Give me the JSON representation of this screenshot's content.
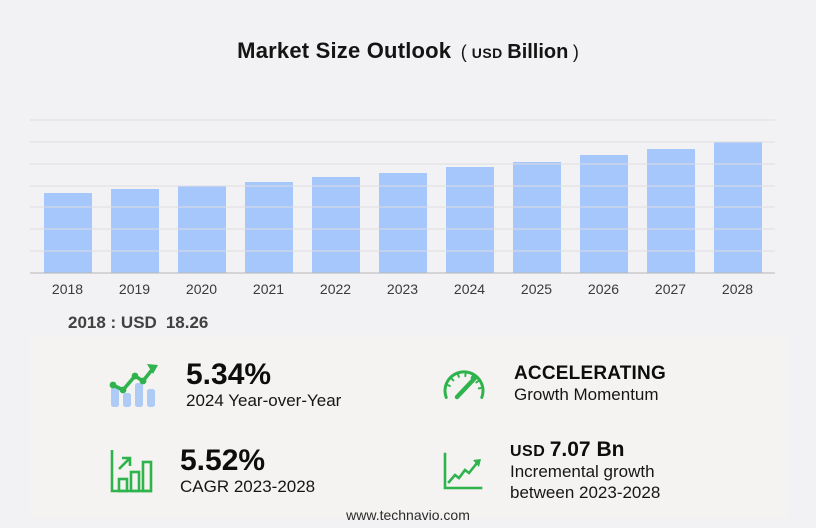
{
  "title": {
    "main": "Market Size Outlook",
    "open": "(",
    "currency": "USD",
    "unit": "Billion",
    "close": ")"
  },
  "chart_data": {
    "type": "bar",
    "title": "Market Size Outlook (USD Billion)",
    "categories": [
      "2018",
      "2019",
      "2020",
      "2021",
      "2022",
      "2023",
      "2024",
      "2025",
      "2026",
      "2027",
      "2028"
    ],
    "values": [
      18.26,
      19.21,
      19.83,
      20.76,
      21.92,
      22.94,
      24.16,
      25.49,
      26.92,
      28.43,
      30.01
    ],
    "xlabel": "",
    "ylabel": "",
    "ylim": [
      0,
      35
    ],
    "yticks": [
      0,
      5,
      10,
      15,
      20,
      25,
      30,
      35
    ],
    "grid": true,
    "legend": "none",
    "bar_color": "#a6c7fb"
  },
  "annotation": {
    "label": "2018 : USD",
    "value": "18.26"
  },
  "stats": [
    {
      "icon": "yoy-bar-chart-icon",
      "value": "5.34%",
      "label": "2024 Year-over-Year"
    },
    {
      "icon": "gauge-icon",
      "value": "ACCELERATING",
      "label": "Growth Momentum"
    },
    {
      "icon": "cagr-bar-chart-icon",
      "value": "5.52%",
      "label": "CAGR 2023-2028"
    },
    {
      "icon": "incremental-line-icon",
      "value_prefix": "USD",
      "value": "7.07 Bn",
      "label": "Incremental growth",
      "label2": "between 2023-2028"
    }
  ],
  "footer": {
    "url": "www.technavio.com"
  },
  "colors": {
    "background": "#f2f2f4",
    "panel": "#f4f3f1",
    "bar": "#a6c7fb",
    "icon_bar_blue": "#aecbf5",
    "green": "#2fb34c",
    "gridline": "#dddde0",
    "axis": "#b7b7ba"
  }
}
